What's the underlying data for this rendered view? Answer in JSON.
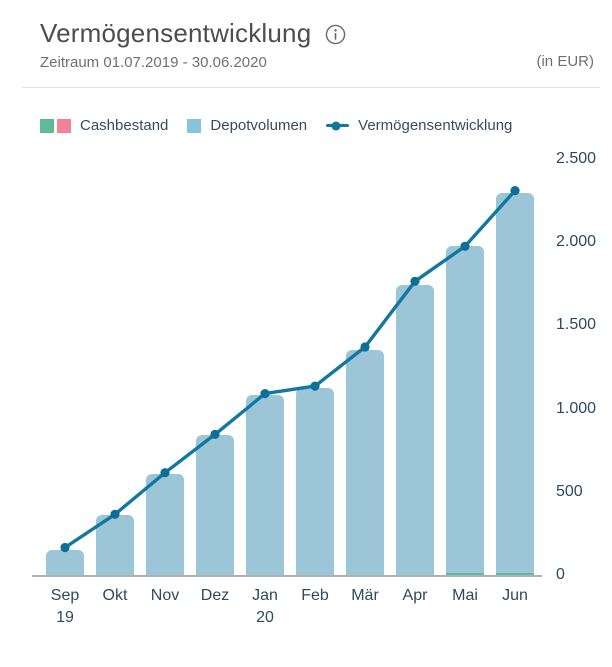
{
  "header": {
    "title": "Vermögensentwicklung",
    "subtitle": "Zeitraum 01.07.2019 - 30.06.2020",
    "unit_label": "(in EUR)"
  },
  "legend": {
    "cash_label": "Cashbestand",
    "depot_label": "Depotvolumen",
    "line_label": "Vermögensentwicklung"
  },
  "colors": {
    "title_text": "#4d4d4d",
    "subtitle_text": "#707070",
    "legend_text": "#3c4b5a",
    "axis_text": "#2e4a5e",
    "bar_fill": "#9cc5d7",
    "line": "#1278a0",
    "line_dot": "#0d6f97",
    "cash_positive": "#5cbc97",
    "cash_negative": "#f08496",
    "depot_swatch": "#87c3da",
    "axis_line": "#b0b0b0",
    "divider": "#e0e0e0"
  },
  "chart_data": {
    "type": "bar+line",
    "unit": "EUR",
    "categories": [
      "Sep",
      "Okt",
      "Nov",
      "Dez",
      "Jan",
      "Feb",
      "Mär",
      "Apr",
      "Mai",
      "Jun"
    ],
    "category_sublabels": [
      "19",
      "",
      "",
      "",
      "20",
      "",
      "",
      "",
      "",
      ""
    ],
    "series": [
      {
        "name": "Cashbestand",
        "type": "bar",
        "stack": "assets",
        "values": [
          0,
          0,
          0,
          0,
          0,
          0,
          0,
          0,
          10,
          10
        ]
      },
      {
        "name": "Depotvolumen",
        "type": "bar",
        "stack": "assets",
        "values": [
          150,
          360,
          605,
          840,
          1080,
          1125,
          1355,
          1745,
          1965,
          2285
        ]
      },
      {
        "name": "Vermögensentwicklung",
        "type": "line",
        "values": [
          165,
          365,
          615,
          845,
          1090,
          1135,
          1370,
          1765,
          1975,
          2310
        ]
      }
    ],
    "yticks": [
      "0",
      "500",
      "1.000",
      "1.500",
      "2.000",
      "2.500"
    ],
    "ytick_values": [
      0,
      500,
      1000,
      1500,
      2000,
      2500
    ],
    "ylim": [
      0,
      2560
    ],
    "grid": false,
    "legend_position": "top",
    "y_axis_side": "right",
    "x_axis_label_rows": 2
  }
}
